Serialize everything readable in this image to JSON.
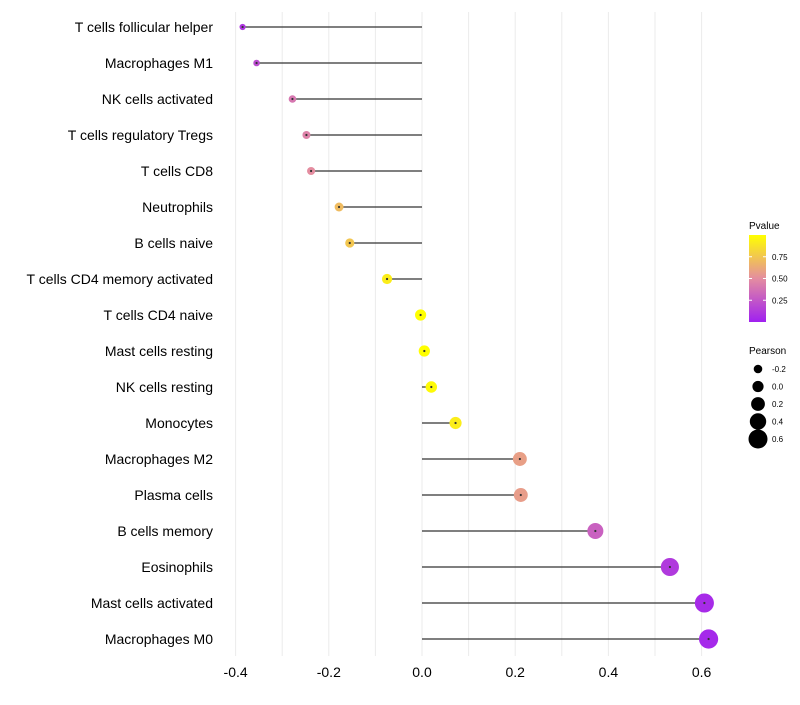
{
  "chart_data": {
    "type": "lollipop",
    "title": "",
    "xlabel": "",
    "ylabel": "",
    "xlim": [
      -0.4,
      0.65
    ],
    "x_ticks": [
      -0.4,
      -0.2,
      0.0,
      0.2,
      0.4,
      0.6
    ],
    "x_tick_labels": [
      "-0.4",
      "-0.2",
      "0.0",
      "0.2",
      "0.4",
      "0.6"
    ],
    "grid": true,
    "baseline": 0,
    "categories": [
      "T cells follicular helper",
      "Macrophages M1",
      "NK cells activated",
      "T cells regulatory  Tregs ",
      "T cells CD8",
      "Neutrophils",
      "B cells naive",
      "T cells CD4 memory activated",
      "T cells CD4 naive",
      "Mast cells resting",
      "NK cells resting",
      "Monocytes",
      "Macrophages M2",
      "Plasma cells",
      "B cells memory",
      "Eosinophils",
      "Mast cells activated",
      "Macrophages M0"
    ],
    "values": [
      -0.385,
      -0.355,
      -0.278,
      -0.248,
      -0.238,
      -0.178,
      -0.155,
      -0.075,
      -0.003,
      0.005,
      0.02,
      0.072,
      0.21,
      0.212,
      0.372,
      0.532,
      0.606,
      0.615
    ],
    "pvalues": [
      0.1,
      0.2,
      0.4,
      0.45,
      0.5,
      0.7,
      0.75,
      0.92,
      1.0,
      1.0,
      0.98,
      0.92,
      0.58,
      0.57,
      0.3,
      0.12,
      0.05,
      0.04
    ],
    "legend_pvalue": {
      "title": "Pvalue",
      "position": "right",
      "range": [
        0.0,
        1.0
      ],
      "ticks": [
        0.25,
        0.5,
        0.75
      ],
      "tick_labels": [
        "0.25",
        "0.50",
        "0.75"
      ],
      "color_low": "#a020f0",
      "color_mid": "#e48da0",
      "color_high": "#ffff00"
    },
    "legend_pearson": {
      "title": "Pearson",
      "position": "right",
      "values": [
        -0.2,
        0.0,
        0.2,
        0.4,
        0.6
      ],
      "labels": [
        "-0.2",
        "0.0",
        "0.2",
        "0.4",
        "0.6"
      ],
      "color": "#000000"
    },
    "colors": {
      "stem": "#333333",
      "grid": "#ebebeb",
      "text": "#000000"
    }
  }
}
